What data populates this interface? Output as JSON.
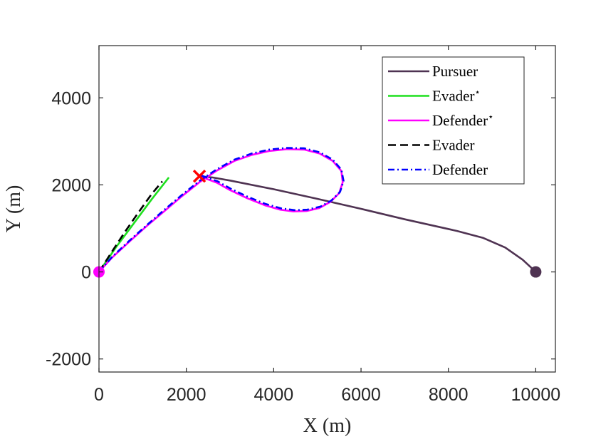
{
  "chart_data": {
    "type": "line",
    "xlabel": "X (m)",
    "ylabel": "Y (m)",
    "xlim": [
      0,
      10450
    ],
    "ylim": [
      -2300,
      5200
    ],
    "xticks": [
      0,
      2000,
      4000,
      6000,
      8000,
      10000
    ],
    "xtick_labels": [
      "0",
      "2000",
      "4000",
      "6000",
      "8000",
      "10000"
    ],
    "yticks": [
      -2000,
      0,
      2000,
      4000
    ],
    "ytick_labels": [
      "-2000",
      "0",
      "2000",
      "4000"
    ],
    "grid": false,
    "legend_position": "top-right",
    "series": [
      {
        "name": "Pursuer",
        "color": "#4f3352",
        "style": "solid",
        "x": [
          10000,
          9700,
          9300,
          8800,
          8200,
          7000,
          6000,
          5000,
          4000,
          3000,
          2600,
          2300
        ],
        "y": [
          0,
          280,
          560,
          780,
          940,
          1210,
          1450,
          1680,
          1900,
          2100,
          2170,
          2200
        ]
      },
      {
        "name": "Evader*",
        "color": "#1ee01e",
        "style": "solid",
        "x": [
          0,
          400,
          800,
          1200,
          1600
        ],
        "y": [
          0,
          580,
          1120,
          1660,
          2170
        ]
      },
      {
        "name": "Defender*",
        "color": "#ff00ff",
        "style": "solid",
        "x": [
          0,
          300,
          700,
          1100,
          1500,
          1900,
          2300,
          2700,
          3100,
          3500,
          3900,
          4300,
          4700,
          5050,
          5350,
          5550,
          5580,
          5500,
          5300,
          5050,
          4750,
          4450,
          4150,
          3800,
          3400,
          3000,
          2700,
          2300
        ],
        "y": [
          0,
          330,
          700,
          1060,
          1400,
          1740,
          2060,
          2330,
          2550,
          2690,
          2780,
          2820,
          2810,
          2720,
          2550,
          2320,
          2060,
          1810,
          1610,
          1470,
          1400,
          1390,
          1430,
          1530,
          1690,
          1880,
          2050,
          2200
        ]
      },
      {
        "name": "Evader",
        "color": "#000000",
        "style": "dashed",
        "x": [
          0,
          300,
          600,
          900,
          1200,
          1450
        ],
        "y": [
          0,
          470,
          930,
          1360,
          1780,
          2080
        ]
      },
      {
        "name": "Defender",
        "color": "#0000ff",
        "style": "dashdot",
        "x": [
          0,
          300,
          700,
          1100,
          1500,
          1900,
          2300,
          2700,
          3100,
          3500,
          3900,
          4300,
          4700,
          5050,
          5350,
          5550,
          5600,
          5520,
          5320,
          5070,
          4770,
          4470,
          4170,
          3820,
          3420,
          3020,
          2720,
          2300
        ],
        "y": [
          0,
          345,
          720,
          1080,
          1430,
          1770,
          2090,
          2360,
          2580,
          2720,
          2810,
          2850,
          2840,
          2750,
          2580,
          2350,
          2090,
          1840,
          1640,
          1500,
          1430,
          1420,
          1460,
          1560,
          1720,
          1910,
          2080,
          2230
        ]
      }
    ],
    "markers": [
      {
        "kind": "circle",
        "x": 10000,
        "y": 0,
        "color": "#4f3352"
      },
      {
        "kind": "circle",
        "x": 0,
        "y": 0,
        "color": "#ff00ff"
      },
      {
        "kind": "cross",
        "x": 2300,
        "y": 2200,
        "color": "#ff0000"
      }
    ]
  }
}
